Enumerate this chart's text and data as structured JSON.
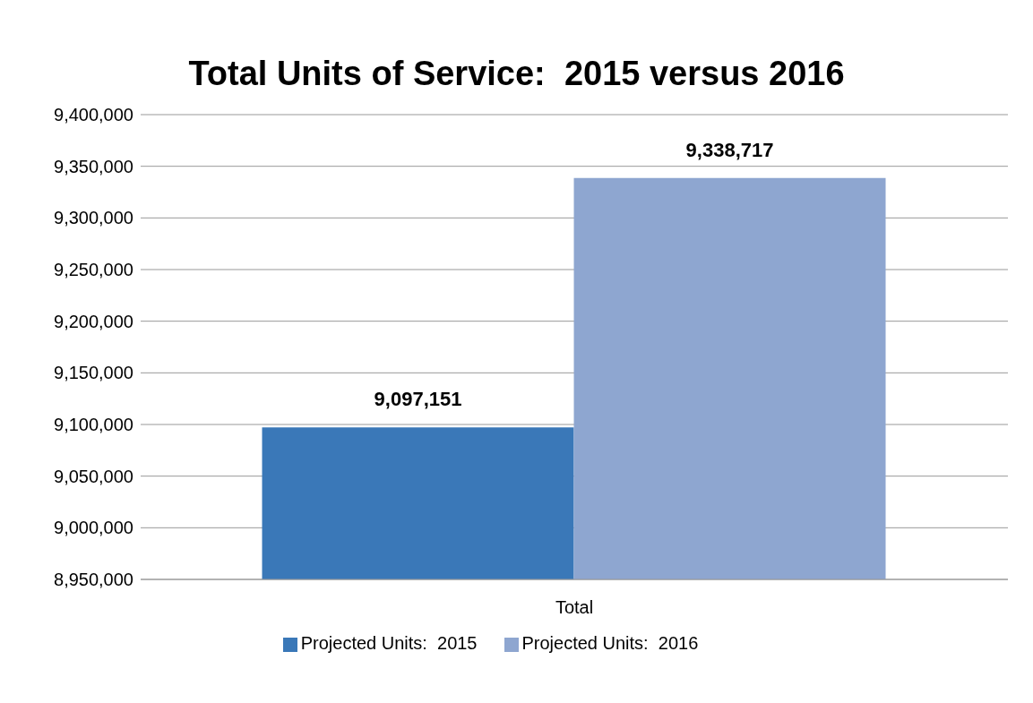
{
  "chart_data": {
    "type": "bar",
    "title": "Total Units of Service:  2015 versus 2016",
    "categories": [
      "Total"
    ],
    "series": [
      {
        "name": "Projected Units:  2015",
        "color": "#3a78b8",
        "values": [
          9097151
        ],
        "value_labels": [
          "9,097,151"
        ]
      },
      {
        "name": "Projected Units:  2016",
        "color": "#8ea6d0",
        "values": [
          9338717
        ],
        "value_labels": [
          "9,338,717"
        ]
      }
    ],
    "ylim": [
      8950000,
      9400000
    ],
    "yticks": [
      {
        "value": 8950000,
        "label": "8,950,000"
      },
      {
        "value": 9000000,
        "label": "9,000,000"
      },
      {
        "value": 9050000,
        "label": "9,050,000"
      },
      {
        "value": 9100000,
        "label": "9,100,000"
      },
      {
        "value": 9150000,
        "label": "9,150,000"
      },
      {
        "value": 9200000,
        "label": "9,200,000"
      },
      {
        "value": 9250000,
        "label": "9,250,000"
      },
      {
        "value": 9300000,
        "label": "9,300,000"
      },
      {
        "value": 9350000,
        "label": "9,350,000"
      },
      {
        "value": 9400000,
        "label": "9,400,000"
      }
    ],
    "grid": "y",
    "legend": "bottom"
  }
}
